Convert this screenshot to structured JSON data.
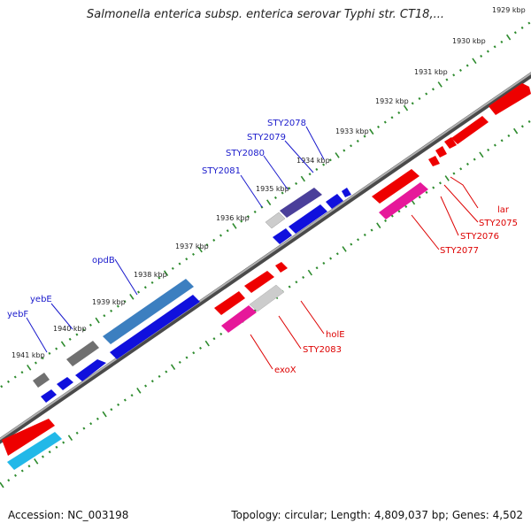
{
  "title": "Salmonella enterica subsp. enterica serovar Typhi str. CT18,...",
  "footer": {
    "accession": "Accession: NC_003198",
    "summary": "Topology: circular; Length: 4,809,037 bp; Genes: 4,502"
  },
  "colors": {
    "backbone": "#808080",
    "tick": "#2e8b2e",
    "forward_label": "#1a1acc",
    "reverse_label": "#dd0000",
    "red_gene": "#ee0000",
    "blue_gene": "#1010dd",
    "magenta_gene": "#e6189a",
    "cyan_gene": "#22b8e8",
    "steel_gene": "#3c7fc0",
    "navy_gene": "#4a3f9a",
    "gray_gene": "#707070",
    "lightgray_gene": "#c8c8c8"
  },
  "kbp_labels": [
    "1929 kbp",
    "1930 kbp",
    "1931 kbp",
    "1932 kbp",
    "1933 kbp",
    "1934 kbp",
    "1935 kbp",
    "1936 kbp",
    "1937 kbp",
    "1938 kbp",
    "1939 kbp",
    "1940 kbp",
    "1941 kbp"
  ],
  "forward_labels": [
    "STY2078",
    "STY2079",
    "STY2080",
    "STY2081",
    "opdB",
    "yebE",
    "yebF"
  ],
  "reverse_labels": [
    "lar",
    "STY2075",
    "STY2076",
    "STY2077",
    "holE",
    "STY2083",
    "exoX"
  ]
}
